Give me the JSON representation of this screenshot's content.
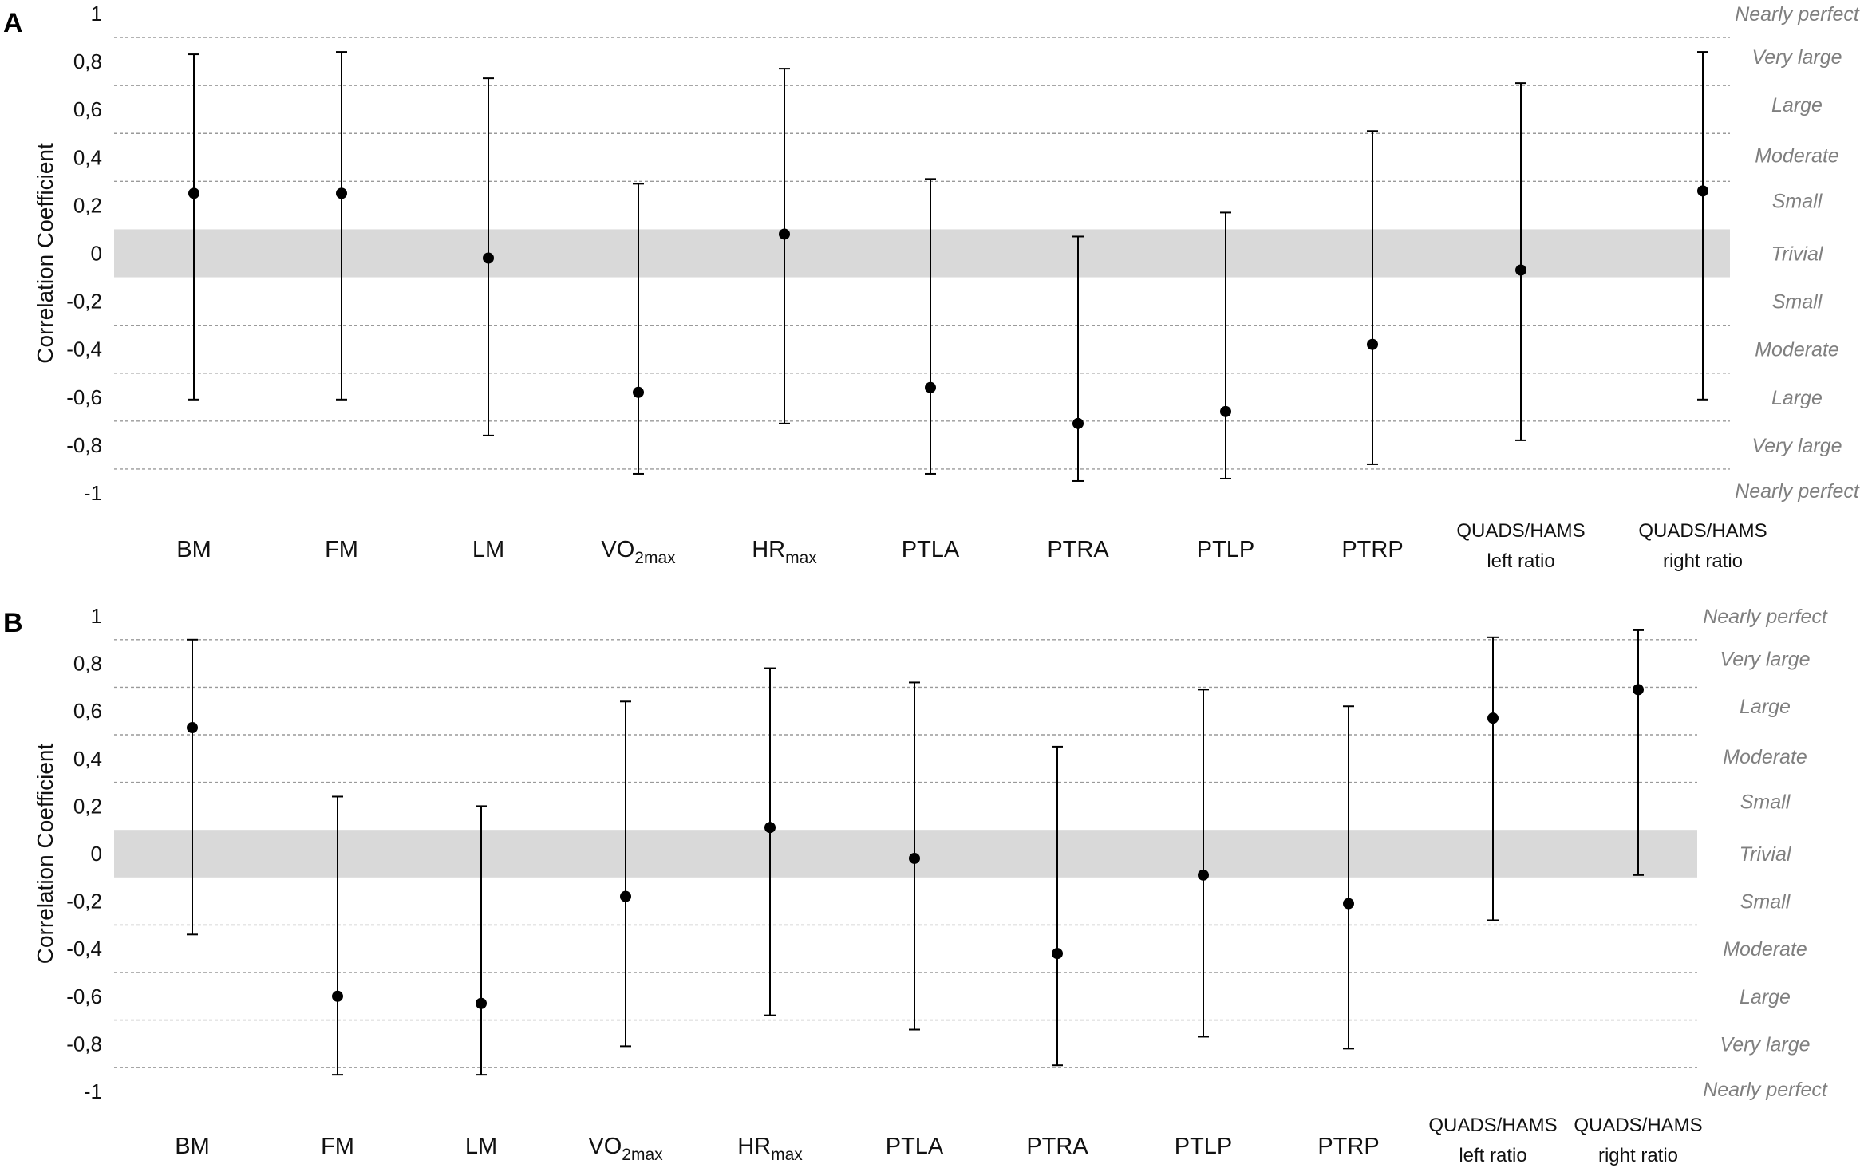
{
  "chart_data": [
    {
      "type": "scatter",
      "panel": "A",
      "title": "",
      "xlabel": "",
      "ylabel": "Correlation Coefficient",
      "ylim": [
        -1,
        1
      ],
      "yticks": [
        "1",
        "0,8",
        "0,6",
        "0,4",
        "0,2",
        "0",
        "-0,2",
        "-0,4",
        "-0,6",
        "-0,8",
        "-1"
      ],
      "categories": [
        {
          "main": "BM"
        },
        {
          "main": "FM"
        },
        {
          "main": "LM"
        },
        {
          "main": "VO",
          "sub": "2max"
        },
        {
          "main": "HR",
          "sub": "max"
        },
        {
          "main": "PTLA"
        },
        {
          "main": "PTRA"
        },
        {
          "main": "PTLP"
        },
        {
          "main": "PTRP"
        },
        {
          "line1": "QUADS/HAMS",
          "line2": "left ratio"
        },
        {
          "line1": "QUADS/HAMS",
          "line2": "right ratio"
        }
      ],
      "values": [
        0.25,
        0.25,
        -0.02,
        -0.58,
        0.08,
        -0.56,
        -0.71,
        -0.66,
        -0.38,
        -0.07,
        0.26
      ],
      "ci_upper": [
        0.83,
        0.84,
        0.73,
        0.29,
        0.77,
        0.31,
        0.07,
        0.17,
        0.51,
        0.71,
        0.84
      ],
      "ci_lower": [
        -0.61,
        -0.61,
        -0.76,
        -0.92,
        -0.71,
        -0.92,
        -0.95,
        -0.94,
        -0.88,
        -0.78,
        -0.61
      ],
      "magnitude_labels": [
        {
          "label": "Nearly perfect",
          "y": 1.0
        },
        {
          "label": "Very large",
          "y": 0.82
        },
        {
          "label": "Large",
          "y": 0.62
        },
        {
          "label": "Moderate",
          "y": 0.41
        },
        {
          "label": "Small",
          "y": 0.22
        },
        {
          "label": "Trivial",
          "y": 0.0
        },
        {
          "label": "Small",
          "y": -0.2
        },
        {
          "label": "Moderate",
          "y": -0.4
        },
        {
          "label": "Large",
          "y": -0.6
        },
        {
          "label": "Very large",
          "y": -0.8
        },
        {
          "label": "Nearly perfect",
          "y": -0.99
        }
      ],
      "threshold_lines": [
        0.9,
        0.7,
        0.5,
        0.3,
        -0.3,
        -0.5,
        -0.7,
        -0.9
      ],
      "trivial_band": [
        -0.1,
        0.1
      ]
    },
    {
      "type": "scatter",
      "panel": "B",
      "title": "",
      "xlabel": "",
      "ylabel": "Correlation Coefficient",
      "ylim": [
        -1,
        1
      ],
      "yticks": [
        "1",
        "0,8",
        "0,6",
        "0,4",
        "0,2",
        "0",
        "-0,2",
        "-0,4",
        "-0,6",
        "-0,8",
        "-1"
      ],
      "categories": [
        {
          "main": "BM"
        },
        {
          "main": "FM"
        },
        {
          "main": "LM"
        },
        {
          "main": "VO",
          "sub": "2max"
        },
        {
          "main": "HR",
          "sub": "max"
        },
        {
          "main": "PTLA"
        },
        {
          "main": "PTRA"
        },
        {
          "main": "PTLP"
        },
        {
          "main": "PTRP"
        },
        {
          "line1": "QUADS/HAMS",
          "line2": "left ratio"
        },
        {
          "line1": "QUADS/HAMS",
          "line2": "right ratio"
        }
      ],
      "values": [
        0.53,
        -0.6,
        -0.63,
        -0.18,
        0.11,
        -0.02,
        -0.42,
        -0.09,
        -0.21,
        0.57,
        0.69
      ],
      "ci_upper": [
        0.9,
        0.24,
        0.2,
        0.64,
        0.78,
        0.72,
        0.45,
        0.69,
        0.62,
        0.91,
        0.94
      ],
      "ci_lower": [
        -0.34,
        -0.93,
        -0.93,
        -0.81,
        -0.68,
        -0.74,
        -0.89,
        -0.77,
        -0.82,
        -0.28,
        -0.09
      ],
      "magnitude_labels": [
        {
          "label": "Nearly perfect",
          "y": 1.0
        },
        {
          "label": "Very large",
          "y": 0.82
        },
        {
          "label": "Large",
          "y": 0.62
        },
        {
          "label": "Moderate",
          "y": 0.41
        },
        {
          "label": "Small",
          "y": 0.22
        },
        {
          "label": "Trivial",
          "y": 0.0
        },
        {
          "label": "Small",
          "y": -0.2
        },
        {
          "label": "Moderate",
          "y": -0.4
        },
        {
          "label": "Large",
          "y": -0.6
        },
        {
          "label": "Very large",
          "y": -0.8
        },
        {
          "label": "Nearly perfect",
          "y": -0.99
        }
      ],
      "threshold_lines": [
        0.9,
        0.7,
        0.5,
        0.3,
        -0.3,
        -0.5,
        -0.7,
        -0.9
      ],
      "trivial_band": [
        -0.1,
        0.1
      ]
    }
  ]
}
